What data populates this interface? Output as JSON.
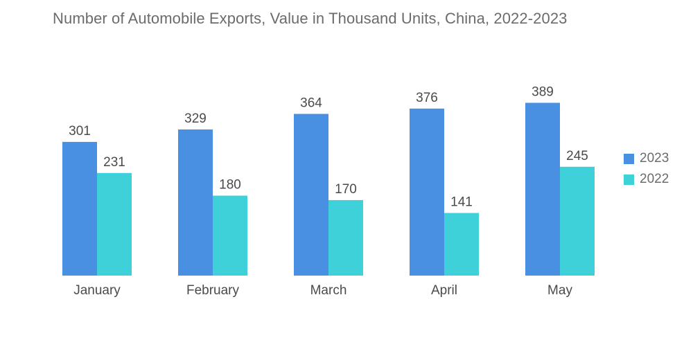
{
  "chart_data": {
    "type": "bar",
    "title": "Number of Automobile Exports, Value in Thousand Units, China, 2022-2023",
    "categories": [
      "January",
      "February",
      "March",
      "April",
      "May"
    ],
    "series": [
      {
        "name": "2023",
        "color": "#4a90e2",
        "values": [
          301,
          329,
          364,
          376,
          389
        ]
      },
      {
        "name": "2022",
        "color": "#3ed1d9",
        "values": [
          231,
          180,
          170,
          141,
          245
        ]
      }
    ],
    "xlabel": "",
    "ylabel": "",
    "ylim": [
      0,
      400
    ],
    "legend_position": "right",
    "grid": false
  }
}
